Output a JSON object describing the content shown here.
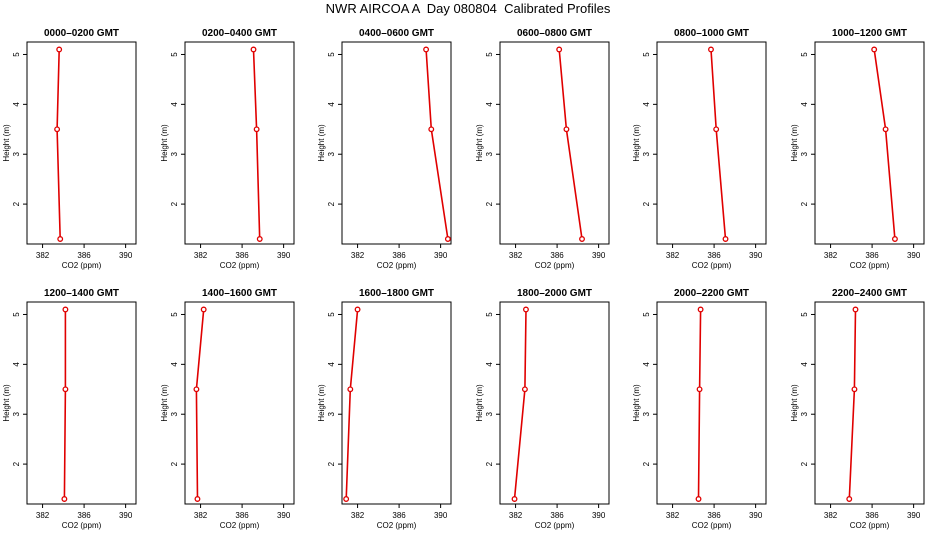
{
  "title": "NWR AIRCOA A  Day 080804  Calibrated Profiles",
  "colors": {
    "profile_line": "#e00000",
    "profile_marker": "#e00000",
    "axis": "#000000"
  },
  "chart_data": {
    "type": "line",
    "shared": {
      "xlabel": "CO2 (ppm)",
      "ylabel": "Height (m)",
      "xlim": [
        380.5,
        391
      ],
      "ylim": [
        1.2,
        5.25
      ],
      "xticks": [
        382,
        386,
        390
      ],
      "yticks": [
        2,
        3,
        4,
        5
      ],
      "grid": false,
      "legend": "none"
    },
    "panels": [
      {
        "title": "0000–0200 GMT",
        "points": [
          {
            "co2": 383.6,
            "height": 5.1
          },
          {
            "co2": 383.4,
            "height": 3.5
          },
          {
            "co2": 383.7,
            "height": 1.3
          }
        ]
      },
      {
        "title": "0200–0400 GMT",
        "points": [
          {
            "co2": 387.1,
            "height": 5.1
          },
          {
            "co2": 387.4,
            "height": 3.5
          },
          {
            "co2": 387.7,
            "height": 1.3
          }
        ]
      },
      {
        "title": "0400–0600 GMT",
        "points": [
          {
            "co2": 388.6,
            "height": 5.1
          },
          {
            "co2": 389.1,
            "height": 3.5
          },
          {
            "co2": 390.7,
            "height": 1.3
          }
        ]
      },
      {
        "title": "0600–0800 GMT",
        "points": [
          {
            "co2": 386.2,
            "height": 5.1
          },
          {
            "co2": 386.9,
            "height": 3.5
          },
          {
            "co2": 388.4,
            "height": 1.3
          }
        ]
      },
      {
        "title": "0800–1000 GMT",
        "points": [
          {
            "co2": 385.7,
            "height": 5.1
          },
          {
            "co2": 386.2,
            "height": 3.5
          },
          {
            "co2": 387.1,
            "height": 1.3
          }
        ]
      },
      {
        "title": "1000–1200 GMT",
        "points": [
          {
            "co2": 386.2,
            "height": 5.1
          },
          {
            "co2": 387.3,
            "height": 3.5
          },
          {
            "co2": 388.2,
            "height": 1.3
          }
        ]
      },
      {
        "title": "1200–1400 GMT",
        "points": [
          {
            "co2": 384.2,
            "height": 5.1
          },
          {
            "co2": 384.2,
            "height": 3.5
          },
          {
            "co2": 384.1,
            "height": 1.3
          }
        ]
      },
      {
        "title": "1400–1600 GMT",
        "points": [
          {
            "co2": 382.3,
            "height": 5.1
          },
          {
            "co2": 381.6,
            "height": 3.5
          },
          {
            "co2": 381.7,
            "height": 1.3
          }
        ]
      },
      {
        "title": "1600–1800 GMT",
        "points": [
          {
            "co2": 382.0,
            "height": 5.1
          },
          {
            "co2": 381.3,
            "height": 3.5
          },
          {
            "co2": 380.9,
            "height": 1.3
          }
        ]
      },
      {
        "title": "1800–2000 GMT",
        "points": [
          {
            "co2": 383.0,
            "height": 5.1
          },
          {
            "co2": 382.9,
            "height": 3.5
          },
          {
            "co2": 381.9,
            "height": 1.3
          }
        ]
      },
      {
        "title": "2000–2200 GMT",
        "points": [
          {
            "co2": 384.7,
            "height": 5.1
          },
          {
            "co2": 384.6,
            "height": 3.5
          },
          {
            "co2": 384.5,
            "height": 1.3
          }
        ]
      },
      {
        "title": "2200–2400 GMT",
        "points": [
          {
            "co2": 384.4,
            "height": 5.1
          },
          {
            "co2": 384.3,
            "height": 3.5
          },
          {
            "co2": 383.8,
            "height": 1.3
          }
        ]
      }
    ]
  }
}
